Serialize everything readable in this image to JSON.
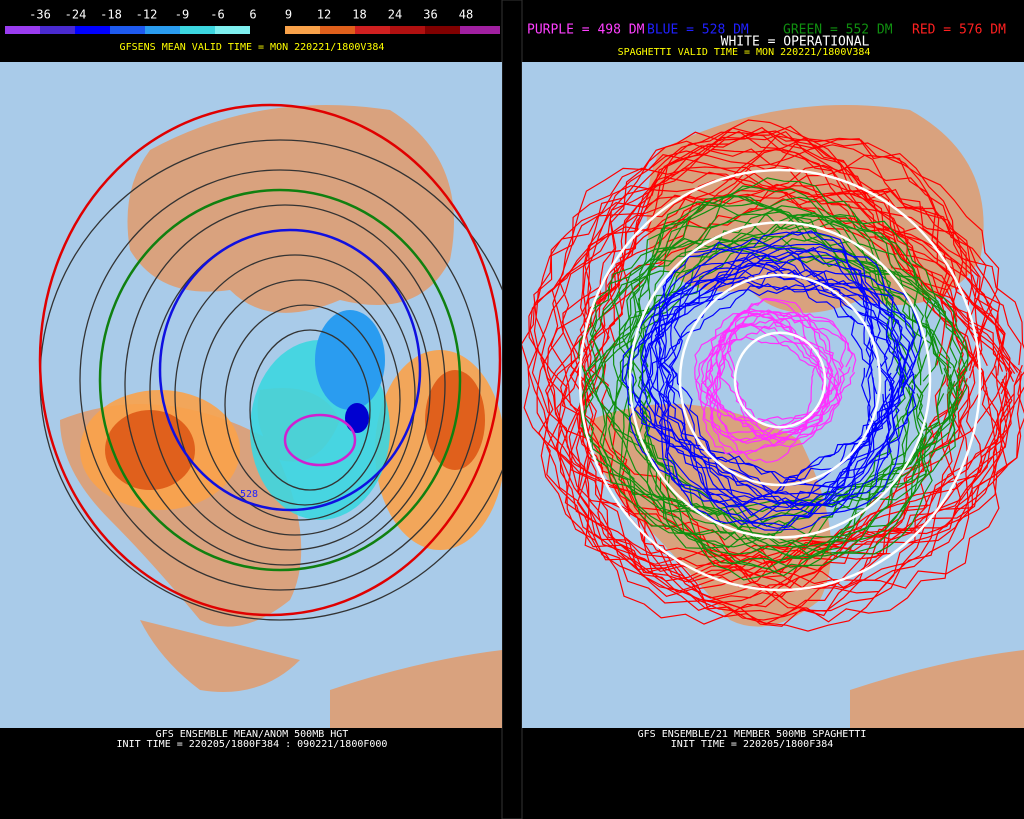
{
  "left": {
    "colorbar": {
      "labels": [
        "-36",
        "-24",
        "-18",
        "-12",
        "-9",
        "-6",
        "6",
        "9",
        "12",
        "18",
        "24",
        "36",
        "48"
      ]
    },
    "valid_time": "GFSENS MEAN VALID TIME = MON 220221/1800V384",
    "contour_label": "528",
    "footer": [
      "GFS ENSEMBLE MEAN/ANOM 500MB HGT",
      "INIT TIME = 220205/1800F384 : 090221/1800F000"
    ]
  },
  "right": {
    "legend": [
      "PURPLE = 498 DM",
      "BLUE = 528 DM",
      "GREEN = 552 DM",
      "RED = 576 DM"
    ],
    "operational": "WHITE = OPERATIONAL",
    "valid_time": "SPAGHETTI VALID TIME = MON 220221/1800V384",
    "footer": [
      "GFS ENSEMBLE/21 MEMBER 500MB SPAGHETTI",
      "INIT TIME = 220205/1800F384"
    ]
  }
}
